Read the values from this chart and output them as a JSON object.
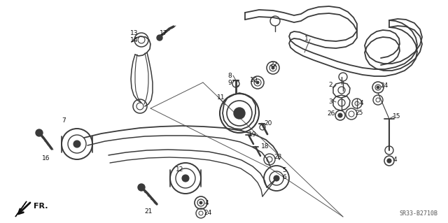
{
  "bg_color": "#ffffff",
  "diagram_color": "#3a3a3a",
  "fig_width": 6.4,
  "fig_height": 3.19,
  "watermark": "SR33-B2710B",
  "fr_label": "FR."
}
